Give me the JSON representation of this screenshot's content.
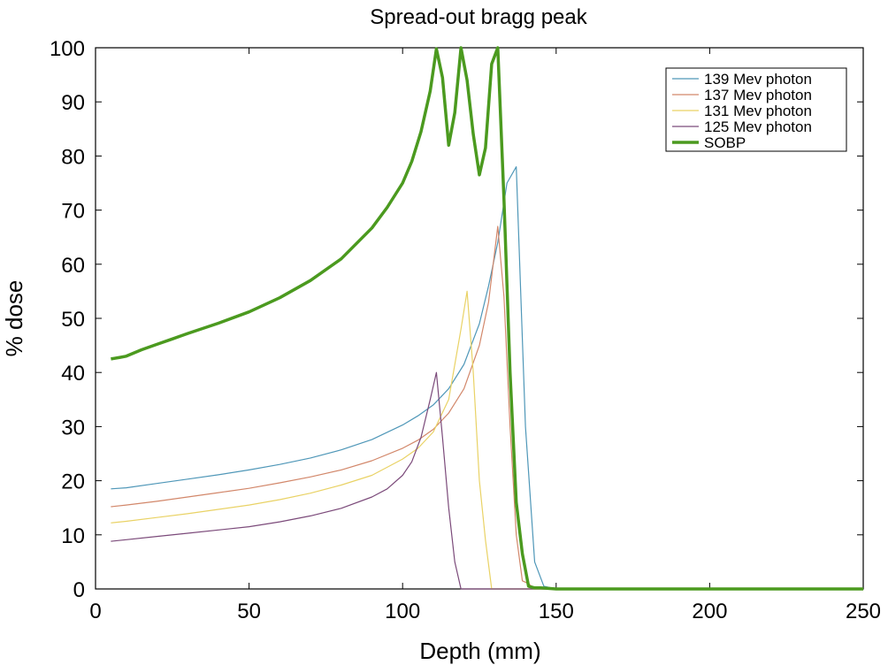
{
  "chart_data": {
    "type": "line",
    "title": "Spread-out bragg peak",
    "xlabel": "Depth (mm)",
    "ylabel": "% dose",
    "xlim": [
      0,
      250
    ],
    "ylim": [
      0,
      100
    ],
    "xticks": [
      0,
      50,
      100,
      150,
      200,
      250
    ],
    "yticks": [
      0,
      10,
      20,
      30,
      40,
      50,
      60,
      70,
      80,
      90,
      100
    ],
    "grid": false,
    "legend_position": "top-right",
    "series": [
      {
        "name": "139 Mev photon",
        "color": "#4f97b8",
        "x": [
          5,
          10,
          20,
          30,
          40,
          50,
          60,
          70,
          80,
          90,
          100,
          105,
          110,
          115,
          120,
          125,
          128,
          131,
          134,
          137,
          140,
          143,
          146,
          150,
          160,
          250
        ],
        "y": [
          18.5,
          18.7,
          19.5,
          20.3,
          21.1,
          22.0,
          23.0,
          24.2,
          25.7,
          27.6,
          30.3,
          32.0,
          34.0,
          37.0,
          41.5,
          49.0,
          56.0,
          64.0,
          75.0,
          78.0,
          30.0,
          5.0,
          0.5,
          0.0,
          0.0,
          0.0
        ]
      },
      {
        "name": "137 Mev photon",
        "color": "#d2876a",
        "x": [
          5,
          10,
          20,
          30,
          40,
          50,
          60,
          70,
          80,
          90,
          100,
          105,
          110,
          115,
          120,
          125,
          128,
          131,
          133,
          135,
          137,
          139,
          141,
          143,
          250
        ],
        "y": [
          15.2,
          15.5,
          16.2,
          17.0,
          17.8,
          18.6,
          19.6,
          20.7,
          22.0,
          23.7,
          26.0,
          27.5,
          29.5,
          32.5,
          37.0,
          45.0,
          53.0,
          67.0,
          54.0,
          30.0,
          10.0,
          1.5,
          1.0,
          0.0,
          0.0
        ]
      },
      {
        "name": "131 Mev photon",
        "color": "#e9d265",
        "x": [
          5,
          10,
          20,
          30,
          40,
          50,
          60,
          70,
          80,
          90,
          100,
          105,
          110,
          115,
          119,
          121,
          123,
          125,
          127,
          129,
          250
        ],
        "y": [
          12.2,
          12.5,
          13.2,
          13.9,
          14.7,
          15.5,
          16.5,
          17.7,
          19.2,
          21.0,
          24.0,
          26.0,
          29.0,
          35.0,
          48.0,
          55.0,
          40.0,
          20.0,
          9.0,
          0.0,
          0.0
        ]
      },
      {
        "name": "125 Mev photon",
        "color": "#7b4a7a",
        "x": [
          5,
          10,
          20,
          30,
          40,
          50,
          60,
          70,
          80,
          90,
          95,
          100,
          103,
          106,
          109,
          111,
          113,
          115,
          117,
          119,
          125,
          250
        ],
        "y": [
          8.8,
          9.1,
          9.7,
          10.3,
          10.9,
          11.5,
          12.4,
          13.5,
          14.9,
          17.0,
          18.5,
          21.0,
          23.5,
          28.0,
          35.0,
          40.0,
          28.0,
          15.0,
          5.0,
          0.0,
          0.0,
          0.0
        ]
      },
      {
        "name": "SOBP",
        "color": "#4b9a1f",
        "x": [
          5,
          8,
          10,
          15,
          20,
          25,
          30,
          40,
          50,
          60,
          70,
          80,
          90,
          95,
          100,
          103,
          106,
          109,
          111,
          113,
          115,
          117,
          119,
          121,
          123,
          125,
          127,
          129,
          131,
          133,
          135,
          137,
          139,
          141,
          143,
          145,
          150,
          155,
          250
        ],
        "y": [
          42.5,
          42.8,
          43.0,
          44.2,
          45.2,
          46.2,
          47.2,
          49.1,
          51.2,
          53.8,
          57.0,
          61.0,
          66.7,
          70.5,
          75.0,
          79.0,
          84.5,
          92.0,
          99.8,
          94.5,
          82.0,
          88.0,
          100.0,
          94.0,
          84.0,
          76.5,
          81.5,
          97.0,
          100.0,
          72.0,
          40.0,
          16.0,
          6.5,
          0.5,
          0.2,
          0.2,
          0.0,
          0.0,
          0.0
        ]
      }
    ]
  }
}
